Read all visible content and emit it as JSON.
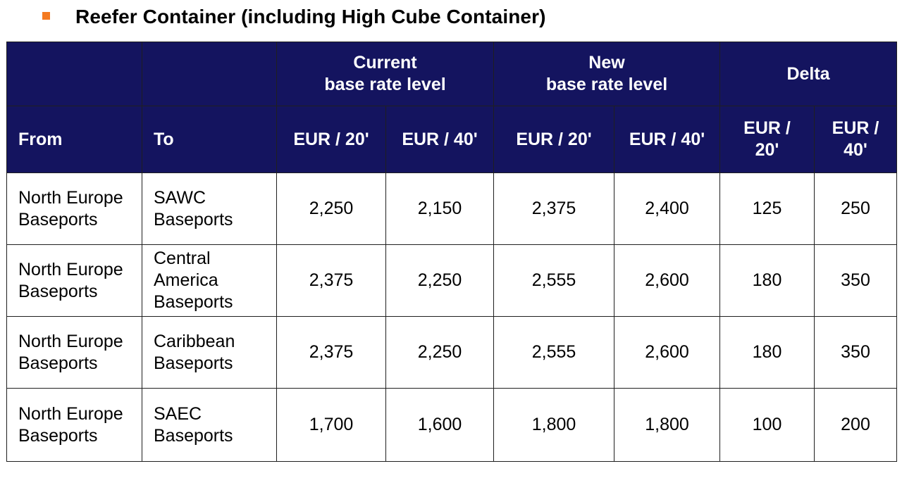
{
  "heading": {
    "text": "Reefer Container (including High Cube Container)",
    "bullet_color": "#f47a20"
  },
  "colors": {
    "header_bg": "#14145f",
    "header_text": "#ffffff",
    "border": "#1f1f1f"
  },
  "group_headers": {
    "current": [
      "Current",
      "base rate level"
    ],
    "new": [
      "New",
      "base rate level"
    ],
    "delta": "Delta"
  },
  "column_headers": {
    "from": "From",
    "to": "To",
    "current_20": "EUR / 20'",
    "current_40": "EUR / 40'",
    "new_20": "EUR / 20'",
    "new_40": "EUR / 40'",
    "delta_20": [
      "EUR /",
      "20'"
    ],
    "delta_40": [
      "EUR /",
      "40'"
    ]
  },
  "rows": [
    {
      "from": [
        "North Europe",
        "Baseports"
      ],
      "to": [
        "SAWC",
        "Baseports"
      ],
      "current_20": "2,250",
      "current_40": "2,150",
      "new_20": "2,375",
      "new_40": "2,400",
      "delta_20": "125",
      "delta_40": "250"
    },
    {
      "from": [
        "North Europe",
        "Baseports"
      ],
      "to": [
        "Central",
        "America",
        "Baseports"
      ],
      "current_20": "2,375",
      "current_40": "2,250",
      "new_20": "2,555",
      "new_40": "2,600",
      "delta_20": "180",
      "delta_40": "350"
    },
    {
      "from": [
        "North Europe",
        "Baseports"
      ],
      "to": [
        "Caribbean",
        "Baseports"
      ],
      "current_20": "2,375",
      "current_40": "2,250",
      "new_20": "2,555",
      "new_40": "2,600",
      "delta_20": "180",
      "delta_40": "350"
    },
    {
      "from": [
        "North Europe",
        "Baseports"
      ],
      "to": [
        "SAEC",
        "Baseports"
      ],
      "current_20": "1,700",
      "current_40": "1,600",
      "new_20": "1,800",
      "new_40": "1,800",
      "delta_20": "100",
      "delta_40": "200"
    }
  ]
}
